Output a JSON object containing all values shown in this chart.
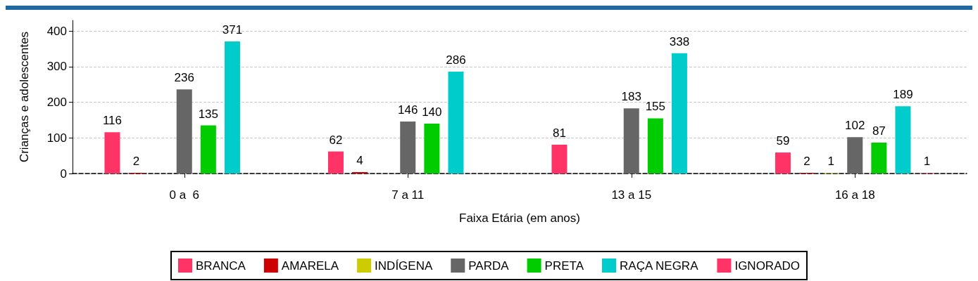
{
  "chart_data": {
    "type": "bar",
    "xlabel": "Faixa Etária (em anos)",
    "ylabel": "Crianças e adolescentes",
    "categories": [
      "0 a  6",
      "7 a 11",
      "13 a 15",
      "16 a 18"
    ],
    "series": [
      {
        "name": "BRANCA",
        "color": "#ff3366",
        "values": [
          116,
          62,
          81,
          59
        ]
      },
      {
        "name": "AMARELA",
        "color": "#cc0000",
        "values": [
          2,
          4,
          null,
          2
        ]
      },
      {
        "name": "INDÍGENA",
        "color": "#cccc00",
        "values": [
          null,
          null,
          null,
          1
        ]
      },
      {
        "name": "PARDA",
        "color": "#666666",
        "values": [
          236,
          146,
          183,
          102
        ]
      },
      {
        "name": "PRETA",
        "color": "#00cc00",
        "values": [
          135,
          140,
          155,
          87
        ]
      },
      {
        "name": "RAÇA NEGRA",
        "color": "#00cccc",
        "values": [
          371,
          286,
          338,
          189
        ]
      },
      {
        "name": "IGNORADO",
        "color": "#ff3366",
        "values": [
          null,
          null,
          null,
          1
        ]
      }
    ],
    "ylim": [
      0,
      430
    ],
    "yticks": [
      0,
      100,
      200,
      300,
      400
    ],
    "grid": "y",
    "data_labels": true,
    "legend": "bottom"
  }
}
